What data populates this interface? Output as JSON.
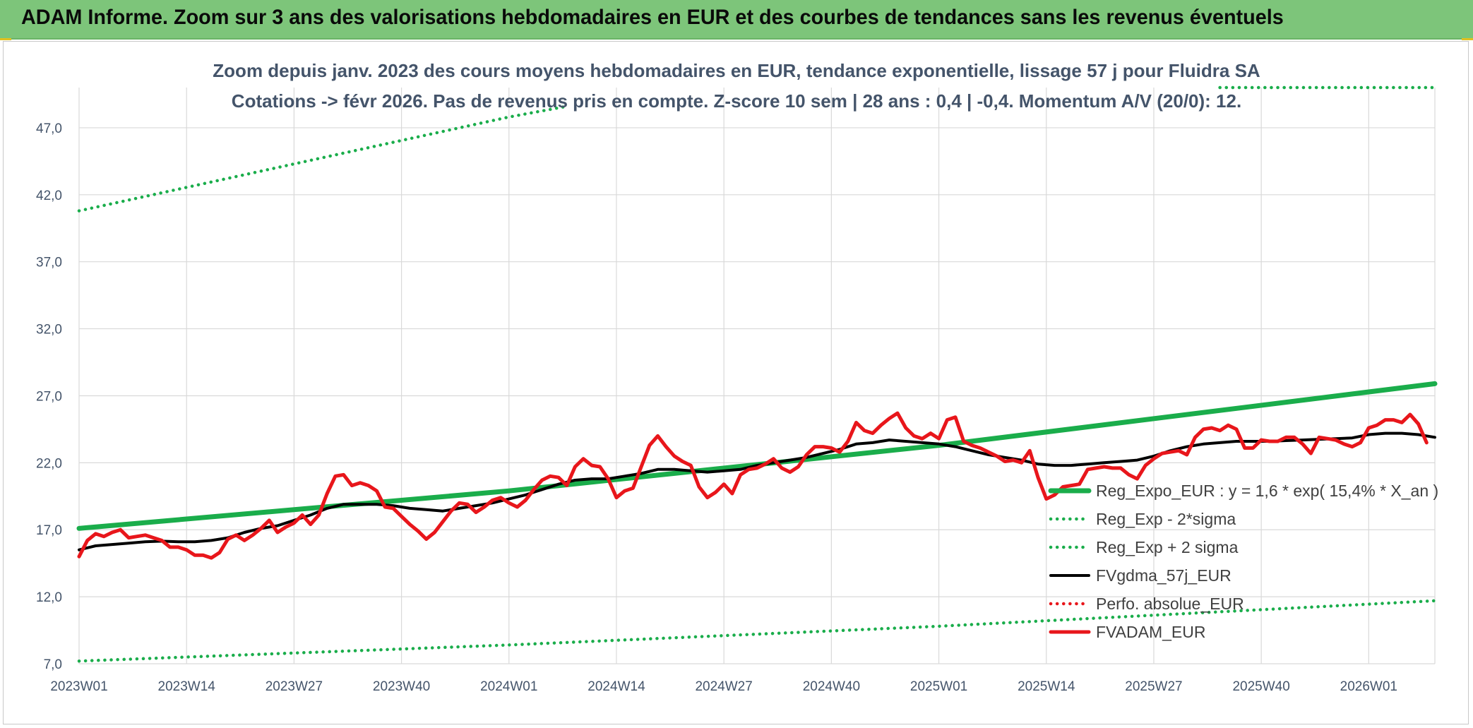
{
  "header": {
    "title": "ADAM Informe. Zoom sur 3 ans des valorisations hebdomadaires en EUR et des courbes de tendances sans les revenus éventuels"
  },
  "colors": {
    "banner": "#7dc57a",
    "green": "#1aad4b",
    "red": "#e8161b",
    "black": "#000000",
    "grid": "#d9d9d9"
  },
  "chart_data": {
    "type": "line",
    "title_line1": "Zoom depuis janv. 2023 des cours moyens hebdomadaires en EUR, tendance exponentielle, lissage 57 j pour Fluidra SA",
    "title_line2": "Cotations -> févr 2026. Pas de revenus pris en compte. Z-score 10 sem | 28 ans : 0,4 | -0,4. Momentum A/V (20/0): 12.",
    "grid": true,
    "legend_position": "right",
    "ylim": [
      7.0,
      50.0
    ],
    "yticks": [
      "7,0",
      "12,0",
      "17,0",
      "22,0",
      "27,0",
      "32,0",
      "37,0",
      "42,0",
      "47,0"
    ],
    "ytick_values": [
      7,
      12,
      17,
      22,
      27,
      32,
      37,
      42,
      47
    ],
    "xticks": [
      "2023W01",
      "2023W14",
      "2023W27",
      "2023W40",
      "2024W01",
      "2024W14",
      "2024W27",
      "2024W40",
      "2025W01",
      "2025W14",
      "2025W27",
      "2025W40",
      "2026W01"
    ],
    "x_first_week": 0,
    "x_last_week": 164,
    "series": [
      {
        "name": "Reg_Expo_EUR : y = 1,6 * exp( 15,4% *  X_an )",
        "style": "solid-thick",
        "color": "#1aad4b",
        "points": [
          [
            0,
            17.1
          ],
          [
            52,
            19.9
          ],
          [
            104,
            23.3
          ],
          [
            164,
            27.9
          ]
        ]
      },
      {
        "name": "Reg_Exp - 2*sigma",
        "style": "dotted",
        "color": "#1aad4b",
        "points": [
          [
            0,
            7.2
          ],
          [
            52,
            8.4
          ],
          [
            104,
            9.8
          ],
          [
            164,
            11.7
          ]
        ]
      },
      {
        "name": "Reg_Exp + 2 sigma",
        "style": "dotted",
        "color": "#1aad4b",
        "points": [
          [
            0,
            40.8
          ],
          [
            52,
            47.8
          ],
          [
            59,
            48.6
          ]
        ],
        "points_b": [
          [
            138,
            50.0
          ],
          [
            164,
            50.0
          ]
        ]
      },
      {
        "name": "FVgdma_57j_EUR",
        "style": "solid",
        "color": "#000000",
        "points": [
          [
            0,
            15.5
          ],
          [
            2,
            15.8
          ],
          [
            4,
            15.9
          ],
          [
            6,
            16.0
          ],
          [
            8,
            16.1
          ],
          [
            10,
            16.15
          ],
          [
            12,
            16.1
          ],
          [
            14,
            16.1
          ],
          [
            16,
            16.2
          ],
          [
            18,
            16.4
          ],
          [
            20,
            16.8
          ],
          [
            22,
            17.1
          ],
          [
            24,
            17.3
          ],
          [
            26,
            17.7
          ],
          [
            28,
            18.1
          ],
          [
            30,
            18.6
          ],
          [
            32,
            18.9
          ],
          [
            34,
            18.9
          ],
          [
            36,
            18.9
          ],
          [
            38,
            18.8
          ],
          [
            40,
            18.6
          ],
          [
            42,
            18.5
          ],
          [
            44,
            18.4
          ],
          [
            46,
            18.6
          ],
          [
            48,
            18.8
          ],
          [
            50,
            19.0
          ],
          [
            52,
            19.3
          ],
          [
            54,
            19.6
          ],
          [
            56,
            20.0
          ],
          [
            58,
            20.4
          ],
          [
            60,
            20.7
          ],
          [
            62,
            20.8
          ],
          [
            64,
            20.8
          ],
          [
            66,
            21.0
          ],
          [
            68,
            21.2
          ],
          [
            70,
            21.5
          ],
          [
            72,
            21.5
          ],
          [
            74,
            21.4
          ],
          [
            76,
            21.3
          ],
          [
            78,
            21.4
          ],
          [
            80,
            21.5
          ],
          [
            82,
            21.8
          ],
          [
            84,
            22.0
          ],
          [
            86,
            22.2
          ],
          [
            88,
            22.4
          ],
          [
            90,
            22.7
          ],
          [
            92,
            23.0
          ],
          [
            94,
            23.4
          ],
          [
            96,
            23.5
          ],
          [
            98,
            23.7
          ],
          [
            100,
            23.6
          ],
          [
            102,
            23.5
          ],
          [
            104,
            23.4
          ],
          [
            106,
            23.2
          ],
          [
            108,
            22.9
          ],
          [
            110,
            22.6
          ],
          [
            112,
            22.4
          ],
          [
            114,
            22.2
          ],
          [
            116,
            21.9
          ],
          [
            118,
            21.8
          ],
          [
            120,
            21.8
          ],
          [
            122,
            21.9
          ],
          [
            124,
            22.0
          ],
          [
            126,
            22.1
          ],
          [
            128,
            22.2
          ],
          [
            130,
            22.5
          ],
          [
            132,
            22.9
          ],
          [
            134,
            23.2
          ],
          [
            136,
            23.4
          ],
          [
            138,
            23.5
          ],
          [
            140,
            23.6
          ],
          [
            142,
            23.6
          ],
          [
            144,
            23.6
          ],
          [
            146,
            23.65
          ],
          [
            148,
            23.7
          ],
          [
            150,
            23.75
          ],
          [
            152,
            23.8
          ],
          [
            154,
            23.85
          ],
          [
            156,
            24.1
          ],
          [
            158,
            24.2
          ],
          [
            160,
            24.2
          ],
          [
            162,
            24.1
          ],
          [
            164,
            23.9
          ]
        ]
      },
      {
        "name": "Perfo. absolue_EUR",
        "style": "dotted",
        "color": "#e8161b",
        "points": []
      },
      {
        "name": "FVADAM_EUR",
        "style": "solid-thick",
        "color": "#e8161b",
        "points": [
          [
            0,
            15.0
          ],
          [
            1,
            16.2
          ],
          [
            2,
            16.7
          ],
          [
            3,
            16.5
          ],
          [
            4,
            16.8
          ],
          [
            5,
            17.0
          ],
          [
            6,
            16.4
          ],
          [
            7,
            16.5
          ],
          [
            8,
            16.6
          ],
          [
            9,
            16.4
          ],
          [
            10,
            16.2
          ],
          [
            11,
            15.7
          ],
          [
            12,
            15.7
          ],
          [
            13,
            15.5
          ],
          [
            14,
            15.1
          ],
          [
            15,
            15.1
          ],
          [
            16,
            14.9
          ],
          [
            17,
            15.3
          ],
          [
            18,
            16.3
          ],
          [
            19,
            16.6
          ],
          [
            20,
            16.2
          ],
          [
            21,
            16.6
          ],
          [
            22,
            17.1
          ],
          [
            23,
            17.7
          ],
          [
            24,
            16.8
          ],
          [
            25,
            17.2
          ],
          [
            26,
            17.5
          ],
          [
            27,
            18.1
          ],
          [
            28,
            17.4
          ],
          [
            29,
            18.1
          ],
          [
            30,
            19.7
          ],
          [
            31,
            21.0
          ],
          [
            32,
            21.1
          ],
          [
            33,
            20.3
          ],
          [
            34,
            20.5
          ],
          [
            35,
            20.3
          ],
          [
            36,
            19.9
          ],
          [
            37,
            18.7
          ],
          [
            38,
            18.6
          ],
          [
            39,
            18.0
          ],
          [
            40,
            17.4
          ],
          [
            41,
            16.9
          ],
          [
            42,
            16.3
          ],
          [
            43,
            16.8
          ],
          [
            44,
            17.6
          ],
          [
            45,
            18.4
          ],
          [
            46,
            19.0
          ],
          [
            47,
            18.9
          ],
          [
            48,
            18.3
          ],
          [
            49,
            18.7
          ],
          [
            50,
            19.2
          ],
          [
            51,
            19.4
          ],
          [
            52,
            19.0
          ],
          [
            53,
            18.7
          ],
          [
            54,
            19.2
          ],
          [
            55,
            20.0
          ],
          [
            56,
            20.7
          ],
          [
            57,
            21.0
          ],
          [
            58,
            20.9
          ],
          [
            59,
            20.3
          ],
          [
            60,
            21.7
          ],
          [
            61,
            22.3
          ],
          [
            62,
            21.8
          ],
          [
            63,
            21.7
          ],
          [
            64,
            20.8
          ],
          [
            65,
            19.4
          ],
          [
            66,
            19.9
          ],
          [
            67,
            20.1
          ],
          [
            68,
            21.7
          ],
          [
            69,
            23.3
          ],
          [
            70,
            24.0
          ],
          [
            71,
            23.2
          ],
          [
            72,
            22.5
          ],
          [
            73,
            22.1
          ],
          [
            74,
            21.8
          ],
          [
            75,
            20.2
          ],
          [
            76,
            19.4
          ],
          [
            77,
            19.8
          ],
          [
            78,
            20.4
          ],
          [
            79,
            19.7
          ],
          [
            80,
            21.1
          ],
          [
            81,
            21.5
          ],
          [
            82,
            21.6
          ],
          [
            83,
            21.9
          ],
          [
            84,
            22.3
          ],
          [
            85,
            21.6
          ],
          [
            86,
            21.3
          ],
          [
            87,
            21.7
          ],
          [
            88,
            22.6
          ],
          [
            89,
            23.2
          ],
          [
            90,
            23.2
          ],
          [
            91,
            23.1
          ],
          [
            92,
            22.8
          ],
          [
            93,
            23.6
          ],
          [
            94,
            25.0
          ],
          [
            95,
            24.4
          ],
          [
            96,
            24.2
          ],
          [
            97,
            24.8
          ],
          [
            98,
            25.3
          ],
          [
            99,
            25.7
          ],
          [
            100,
            24.6
          ],
          [
            101,
            24.0
          ],
          [
            102,
            23.8
          ],
          [
            103,
            24.2
          ],
          [
            104,
            23.8
          ],
          [
            105,
            25.2
          ],
          [
            106,
            25.4
          ],
          [
            107,
            23.6
          ],
          [
            108,
            23.3
          ],
          [
            109,
            23.1
          ],
          [
            110,
            22.8
          ],
          [
            111,
            22.5
          ],
          [
            112,
            22.1
          ],
          [
            113,
            22.2
          ],
          [
            114,
            22.0
          ],
          [
            115,
            22.9
          ],
          [
            116,
            20.9
          ],
          [
            117,
            19.3
          ],
          [
            118,
            19.6
          ],
          [
            119,
            20.2
          ],
          [
            120,
            20.3
          ],
          [
            121,
            20.4
          ],
          [
            122,
            21.5
          ],
          [
            123,
            21.6
          ],
          [
            124,
            21.7
          ],
          [
            125,
            21.6
          ],
          [
            126,
            21.6
          ],
          [
            127,
            21.1
          ],
          [
            128,
            20.8
          ],
          [
            129,
            21.8
          ],
          [
            130,
            22.3
          ],
          [
            131,
            22.7
          ],
          [
            132,
            22.8
          ],
          [
            133,
            22.9
          ],
          [
            134,
            22.6
          ],
          [
            135,
            23.9
          ],
          [
            136,
            24.5
          ],
          [
            137,
            24.6
          ],
          [
            138,
            24.4
          ],
          [
            139,
            24.8
          ],
          [
            140,
            24.5
          ],
          [
            141,
            23.1
          ],
          [
            142,
            23.1
          ],
          [
            143,
            23.7
          ],
          [
            144,
            23.6
          ],
          [
            145,
            23.6
          ],
          [
            146,
            23.9
          ],
          [
            147,
            23.9
          ],
          [
            148,
            23.4
          ],
          [
            149,
            22.7
          ],
          [
            150,
            23.9
          ],
          [
            151,
            23.8
          ],
          [
            152,
            23.7
          ],
          [
            153,
            23.4
          ],
          [
            154,
            23.2
          ],
          [
            155,
            23.5
          ],
          [
            156,
            24.6
          ],
          [
            157,
            24.8
          ],
          [
            158,
            25.2
          ],
          [
            159,
            25.2
          ],
          [
            160,
            25.0
          ],
          [
            161,
            25.6
          ],
          [
            162,
            24.9
          ],
          [
            163,
            23.5
          ]
        ]
      }
    ]
  }
}
